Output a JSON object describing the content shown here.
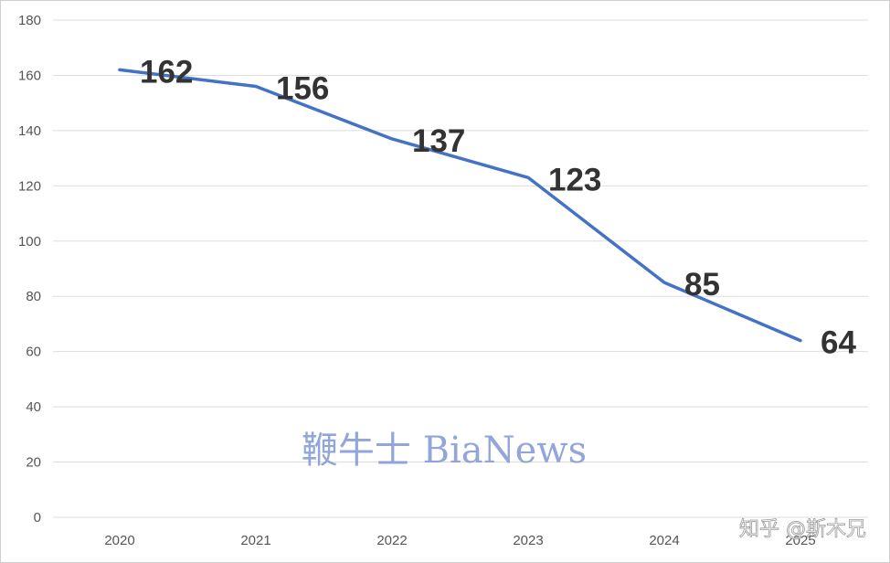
{
  "chart_data": {
    "type": "line",
    "title": "",
    "xlabel": "",
    "ylabel": "",
    "categories": [
      "2020",
      "2021",
      "2022",
      "2023",
      "2024",
      "2025"
    ],
    "series": [
      {
        "values": [
          162,
          156,
          137,
          123,
          85,
          64
        ]
      }
    ],
    "data_labels": [
      "162",
      "156",
      "137",
      "123",
      "85",
      "64"
    ],
    "y_ticks": [
      0,
      20,
      40,
      60,
      80,
      100,
      120,
      140,
      160,
      180
    ],
    "ylim": [
      0,
      180
    ],
    "grid": true,
    "legend": "none",
    "line_color": "#4472c4"
  },
  "watermark": "鞭牛士 BiaNews",
  "credit": "知乎 @斯木兄"
}
